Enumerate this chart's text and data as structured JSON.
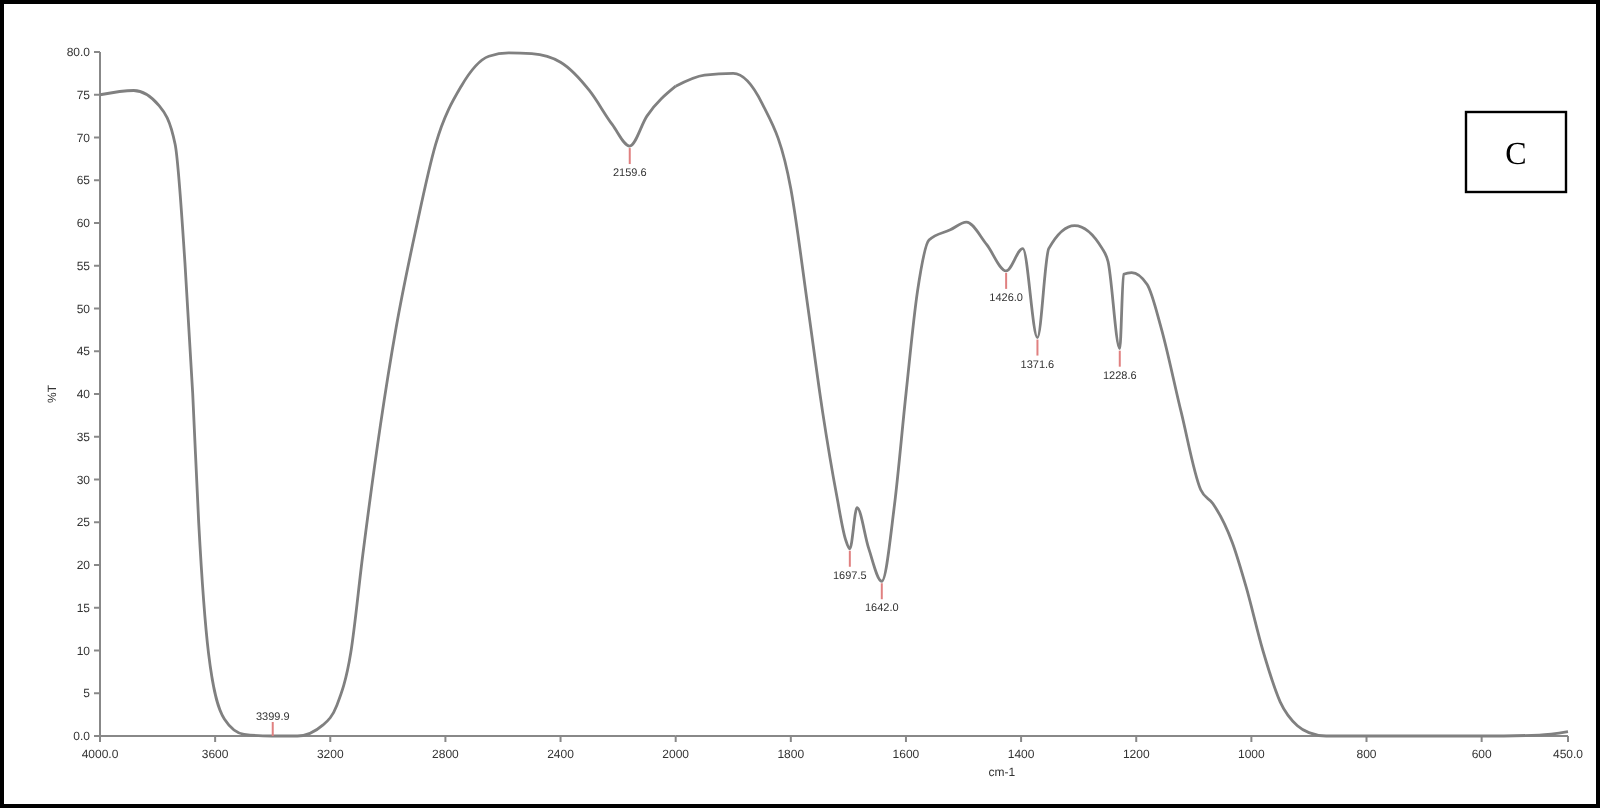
{
  "chart_data": [
    {
      "type": "line",
      "ylabel": "%T",
      "xlim": [
        4000,
        2000
      ],
      "ylim": [
        0,
        80
      ],
      "xticks": [
        {
          "value": 4000,
          "label": "4000.0"
        },
        3600,
        3200,
        2800,
        2400,
        2000
      ],
      "yticks": [
        {
          "value": 0,
          "label": "0.0"
        },
        5,
        10,
        15,
        20,
        25,
        30,
        35,
        40,
        45,
        50,
        55,
        60,
        65,
        70,
        75,
        {
          "value": 80,
          "label": "80.0"
        }
      ],
      "marker": "none",
      "line_style": "solid",
      "series": [
        {
          "color": "#808080",
          "x": [
            4000,
            3883,
            3794,
            3739,
            3705,
            3678,
            3657,
            3623,
            3568,
            3499,
            3403,
            3314,
            3225,
            3177,
            3129,
            3087,
            3026,
            2971,
            2903,
            2834,
            2745,
            2649,
            2580,
            2500,
            2400,
            2300,
            2220,
            2159.6,
            2100,
            2000
          ],
          "values": [
            75.0,
            75.5,
            73.7,
            69.2,
            55.4,
            40.1,
            24.9,
            9.7,
            2.0,
            0.2,
            0,
            0,
            1.3,
            3.6,
            9.7,
            21.2,
            36.3,
            47.8,
            59.2,
            69.2,
            76.0,
            79.5,
            79.9,
            79.8,
            78.8,
            75.5,
            71.5,
            69.0,
            72.5,
            76.0
          ]
        }
      ],
      "annotations": [
        {
          "text": "3399.9",
          "x": 3399.9,
          "y": 0
        },
        {
          "text": "2159.6",
          "x": 2159.6,
          "y": 69.0
        }
      ]
    },
    {
      "type": "line",
      "xlabel": "cm-1",
      "xlim": [
        2000,
        450
      ],
      "ylim": [
        0,
        80
      ],
      "tick_labels": "x",
      "xticks": [
        1800,
        1600,
        1400,
        1200,
        1000,
        800,
        600,
        {
          "value": 450,
          "label": "450.0"
        }
      ],
      "marker": "none",
      "line_style": "solid",
      "series": [
        {
          "color": "#808080",
          "x": [
            2000,
            1950,
            1900,
            1850,
            1800,
            1770,
            1745,
            1720,
            1705,
            1697.5,
            1685,
            1665,
            1642,
            1620,
            1600,
            1580,
            1560,
            1523,
            1495,
            1460,
            1426,
            1397,
            1371.6,
            1352,
            1307,
            1259,
            1249,
            1228.6,
            1222,
            1208,
            1181,
            1157,
            1122,
            1088,
            1067,
            1033,
            1009,
            980,
            950,
            920,
            900,
            870,
            700,
            600,
            500,
            450
          ],
          "values": [
            76.0,
            77.3,
            77.5,
            74.0,
            64.0,
            50.0,
            38.0,
            28.0,
            23.0,
            21.9,
            26.7,
            22.0,
            18.1,
            27.0,
            40.0,
            52.0,
            58.0,
            59.2,
            60.1,
            57.5,
            54.4,
            57.0,
            46.6,
            57.0,
            59.7,
            57.0,
            55.5,
            45.3,
            54.0,
            54.2,
            52.8,
            47.8,
            37.9,
            28.8,
            27.2,
            22.6,
            17.4,
            10.0,
            4.0,
            1.2,
            0.4,
            0,
            0,
            0,
            0.1,
            0.5
          ]
        }
      ],
      "annotations": [
        {
          "text": "1697.5",
          "x": 1697.5,
          "y": 21.9
        },
        {
          "text": "1642.0",
          "x": 1642,
          "y": 18.1
        },
        {
          "text": "1426.0",
          "x": 1426,
          "y": 54.4
        },
        {
          "text": "1371.6",
          "x": 1371.6,
          "y": 46.6
        },
        {
          "text": "1228.6",
          "x": 1228.6,
          "y": 45.3
        },
        "C"
      ]
    }
  ]
}
